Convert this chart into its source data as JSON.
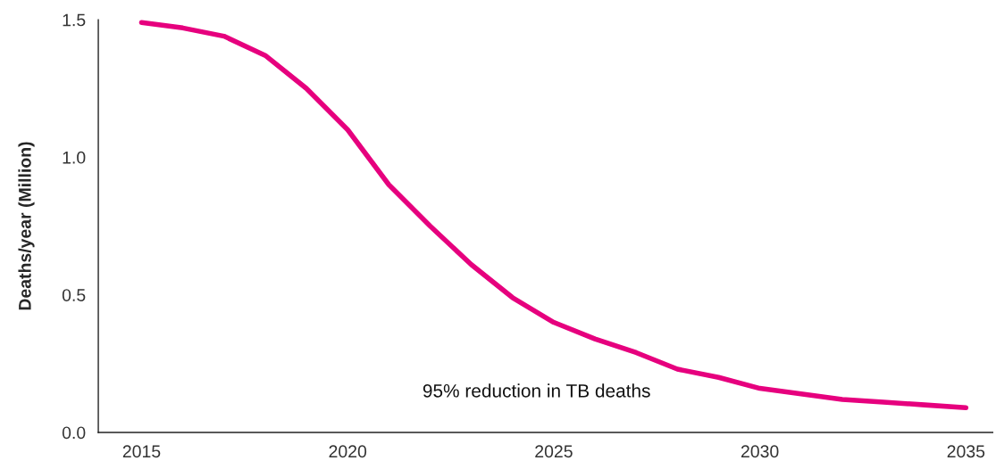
{
  "chart_data": {
    "type": "line",
    "ylabel": "Deaths/year (Million)",
    "x": [
      2015,
      2016,
      2017,
      2018,
      2019,
      2020,
      2021,
      2022,
      2023,
      2024,
      2025,
      2026,
      2027,
      2028,
      2029,
      2030,
      2031,
      2032,
      2033,
      2034,
      2035
    ],
    "series": [
      {
        "color": "#e6007e",
        "values": [
          1.49,
          1.47,
          1.44,
          1.37,
          1.25,
          1.1,
          0.9,
          0.75,
          0.61,
          0.49,
          0.4,
          0.34,
          0.29,
          0.23,
          0.2,
          0.16,
          0.14,
          0.12,
          0.11,
          0.1,
          0.09
        ]
      }
    ],
    "xlim": [
      2013.95,
      2035.65
    ],
    "xticks": [
      2015,
      2020,
      2025,
      2030,
      2035
    ],
    "ylim": [
      0,
      1.5
    ],
    "yticks": [
      {
        "value": 0,
        "label": "0.0"
      },
      {
        "value": 0.5,
        "label": "0.5"
      },
      {
        "value": 1.0,
        "label": "1.0"
      },
      {
        "value": 1.5,
        "label": "1.5"
      }
    ],
    "annotations": [
      "95% reduction in TB deaths"
    ],
    "grid": false,
    "marker": "none",
    "line_style": "solid"
  }
}
